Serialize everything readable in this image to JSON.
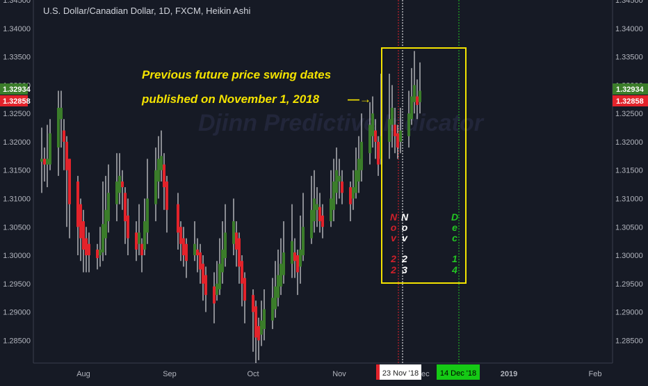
{
  "header": {
    "symbol_title": "U.S. Dollar/Canadian Dollar, 1D, FXCM, Heikin Ashi",
    "watermark": "Djinn Predictive Indicator"
  },
  "price_badges": {
    "upper": "1.32934",
    "lower": "1.32858",
    "upper_color": "#3b7d2a",
    "lower_color": "#e3232b"
  },
  "annotation": {
    "line1": "Previous future price swing dates",
    "line2": "published on November 1, 2018",
    "arrow": "—→",
    "color": "#f4e300"
  },
  "vertical_labels": [
    {
      "chars": [
        "N",
        "o",
        "v"
      ],
      "digits": [
        "2",
        "2"
      ],
      "color": "#d0202a"
    },
    {
      "chars": [
        "N",
        "o",
        "v"
      ],
      "digits": [
        "2",
        "3"
      ],
      "color": "#ffffff"
    },
    {
      "chars": [
        "D",
        "e",
        "c"
      ],
      "digits": [
        "1",
        "4"
      ],
      "color": "#22c522"
    }
  ],
  "date_badges": [
    {
      "label": "23 Nov '18",
      "bg": "#ffffff",
      "fg": "#222222",
      "accent": "#e3232b"
    },
    {
      "label": "14 Dec '18",
      "bg": "#15c915",
      "fg": "#000000"
    }
  ],
  "chart_data": {
    "type": "candlestick",
    "style": "Heikin Ashi",
    "title": "U.S. Dollar/Canadian Dollar, 1D, FXCM, Heikin Ashi",
    "ylim": [
      1.281,
      1.345
    ],
    "y_ticks": [
      "1.28500",
      "1.29000",
      "1.29500",
      "1.30000",
      "1.30500",
      "1.31000",
      "1.31500",
      "1.32000",
      "1.32500",
      "1.33000",
      "1.33500",
      "1.34000",
      "1.34500"
    ],
    "x_ticks": [
      "Aug",
      "Sep",
      "Oct",
      "Nov",
      "Dec",
      "2019",
      "Feb"
    ],
    "grid": false,
    "up_color": "#3b7d2a",
    "down_color": "#e3232b",
    "wick_color": "#ffffff",
    "x_start": "2018-07-17",
    "series": [
      {
        "date": "2018-07-17",
        "open": 1.3165,
        "close": 1.317,
        "high": 1.3225,
        "low": 1.311
      },
      {
        "date": "2018-07-18",
        "open": 1.317,
        "close": 1.316,
        "high": 1.319,
        "low": 1.313
      },
      {
        "date": "2018-07-19",
        "open": 1.316,
        "close": 1.317,
        "high": 1.323,
        "low": 1.312
      },
      {
        "date": "2018-07-20",
        "open": 1.316,
        "close": 1.3215,
        "high": 1.324,
        "low": 1.315
      },
      {
        "date": "2018-07-23",
        "open": 1.319,
        "close": 1.326,
        "high": 1.329,
        "low": 1.314
      },
      {
        "date": "2018-07-24",
        "open": 1.324,
        "close": 1.326,
        "high": 1.329,
        "low": 1.319
      },
      {
        "date": "2018-07-25",
        "open": 1.322,
        "close": 1.32,
        "high": 1.324,
        "low": 1.315
      },
      {
        "date": "2018-07-26",
        "open": 1.32,
        "close": 1.315,
        "high": 1.321,
        "low": 1.305
      },
      {
        "date": "2018-07-27",
        "open": 1.317,
        "close": 1.309,
        "high": 1.317,
        "low": 1.303
      },
      {
        "date": "2018-07-30",
        "open": 1.313,
        "close": 1.305,
        "high": 1.314,
        "low": 1.3
      },
      {
        "date": "2018-07-31",
        "open": 1.309,
        "close": 1.303,
        "high": 1.31,
        "low": 1.299
      },
      {
        "date": "2018-08-01",
        "open": 1.306,
        "close": 1.301,
        "high": 1.308,
        "low": 1.297
      },
      {
        "date": "2018-08-02",
        "open": 1.303,
        "close": 1.3,
        "high": 1.305,
        "low": 1.297
      },
      {
        "date": "2018-08-03",
        "open": 1.302,
        "close": 1.3,
        "high": 1.304,
        "low": 1.297
      },
      {
        "date": "2018-08-06",
        "open": 1.301,
        "close": 1.2995,
        "high": 1.302,
        "low": 1.2975
      },
      {
        "date": "2018-08-07",
        "open": 1.3,
        "close": 1.301,
        "high": 1.305,
        "low": 1.298
      },
      {
        "date": "2018-08-08",
        "open": 1.3005,
        "close": 1.3055,
        "high": 1.313,
        "low": 1.299
      },
      {
        "date": "2018-08-09",
        "open": 1.303,
        "close": 1.308,
        "high": 1.314,
        "low": 1.3
      },
      {
        "date": "2018-08-10",
        "open": 1.306,
        "close": 1.311,
        "high": 1.316,
        "low": 1.304
      },
      {
        "date": "2018-08-13",
        "open": 1.309,
        "close": 1.313,
        "high": 1.318,
        "low": 1.306
      },
      {
        "date": "2018-08-14",
        "open": 1.311,
        "close": 1.314,
        "high": 1.318,
        "low": 1.309
      },
      {
        "date": "2018-08-15",
        "open": 1.313,
        "close": 1.312,
        "high": 1.315,
        "low": 1.308
      },
      {
        "date": "2018-08-16",
        "open": 1.311,
        "close": 1.306,
        "high": 1.312,
        "low": 1.302
      },
      {
        "date": "2018-08-17",
        "open": 1.307,
        "close": 1.303,
        "high": 1.31,
        "low": 1.3
      },
      {
        "date": "2018-08-20",
        "open": 1.304,
        "close": 1.301,
        "high": 1.306,
        "low": 1.299
      },
      {
        "date": "2018-08-21",
        "open": 1.302,
        "close": 1.304,
        "high": 1.309,
        "low": 1.3
      },
      {
        "date": "2018-08-22",
        "open": 1.302,
        "close": 1.3,
        "high": 1.303,
        "low": 1.297
      },
      {
        "date": "2018-08-23",
        "open": 1.301,
        "close": 1.306,
        "high": 1.31,
        "low": 1.3
      },
      {
        "date": "2018-08-24",
        "open": 1.304,
        "close": 1.31,
        "high": 1.317,
        "low": 1.302
      },
      {
        "date": "2018-08-27",
        "open": 1.309,
        "close": 1.315,
        "high": 1.319,
        "low": 1.306
      },
      {
        "date": "2018-08-28",
        "open": 1.313,
        "close": 1.317,
        "high": 1.321,
        "low": 1.31
      },
      {
        "date": "2018-08-29",
        "open": 1.315,
        "close": 1.3175,
        "high": 1.322,
        "low": 1.313
      },
      {
        "date": "2018-08-30",
        "open": 1.316,
        "close": 1.312,
        "high": 1.318,
        "low": 1.308
      },
      {
        "date": "2018-08-31",
        "open": 1.313,
        "close": 1.308,
        "high": 1.314,
        "low": 1.304
      },
      {
        "date": "2018-09-04",
        "open": 1.309,
        "close": 1.304,
        "high": 1.311,
        "low": 1.301
      },
      {
        "date": "2018-09-05",
        "open": 1.305,
        "close": 1.302,
        "high": 1.306,
        "low": 1.299
      },
      {
        "date": "2018-09-06",
        "open": 1.303,
        "close": 1.3,
        "high": 1.305,
        "low": 1.298
      },
      {
        "date": "2018-09-07",
        "open": 1.302,
        "close": 1.299,
        "high": 1.303,
        "low": 1.296
      },
      {
        "date": "2018-09-10",
        "open": 1.3,
        "close": 1.302,
        "high": 1.306,
        "low": 1.299
      },
      {
        "date": "2018-09-11",
        "open": 1.301,
        "close": 1.3,
        "high": 1.303,
        "low": 1.297
      },
      {
        "date": "2018-09-12",
        "open": 1.3005,
        "close": 1.2975,
        "high": 1.302,
        "low": 1.295
      },
      {
        "date": "2018-09-13",
        "open": 1.2985,
        "close": 1.295,
        "high": 1.3,
        "low": 1.292
      },
      {
        "date": "2018-09-14",
        "open": 1.2965,
        "close": 1.293,
        "high": 1.298,
        "low": 1.29
      },
      {
        "date": "2018-09-17",
        "open": 1.2945,
        "close": 1.2915,
        "high": 1.297,
        "low": 1.288
      },
      {
        "date": "2018-09-18",
        "open": 1.293,
        "close": 1.295,
        "high": 1.299,
        "low": 1.292
      },
      {
        "date": "2018-09-19",
        "open": 1.294,
        "close": 1.2985,
        "high": 1.303,
        "low": 1.293
      },
      {
        "date": "2018-09-20",
        "open": 1.297,
        "close": 1.301,
        "high": 1.306,
        "low": 1.295
      },
      {
        "date": "2018-09-21",
        "open": 1.2995,
        "close": 1.304,
        "high": 1.309,
        "low": 1.298
      },
      {
        "date": "2018-09-24",
        "open": 1.302,
        "close": 1.306,
        "high": 1.31,
        "low": 1.3
      },
      {
        "date": "2018-09-25",
        "open": 1.304,
        "close": 1.301,
        "high": 1.306,
        "low": 1.298
      },
      {
        "date": "2018-09-26",
        "open": 1.303,
        "close": 1.298,
        "high": 1.304,
        "low": 1.295
      },
      {
        "date": "2018-09-27",
        "open": 1.299,
        "close": 1.295,
        "high": 1.3,
        "low": 1.291
      },
      {
        "date": "2018-09-28",
        "open": 1.296,
        "close": 1.292,
        "high": 1.297,
        "low": 1.288
      },
      {
        "date": "2018-10-01",
        "open": 1.293,
        "close": 1.29,
        "high": 1.294,
        "low": 1.283
      },
      {
        "date": "2018-10-02",
        "open": 1.291,
        "close": 1.2855,
        "high": 1.292,
        "low": 1.281
      },
      {
        "date": "2018-10-03",
        "open": 1.2875,
        "close": 1.285,
        "high": 1.289,
        "low": 1.2815
      },
      {
        "date": "2018-10-04",
        "open": 1.286,
        "close": 1.2885,
        "high": 1.292,
        "low": 1.284
      },
      {
        "date": "2018-10-05",
        "open": 1.287,
        "close": 1.2905,
        "high": 1.294,
        "low": 1.285
      },
      {
        "date": "2018-10-08",
        "open": 1.2885,
        "close": 1.2925,
        "high": 1.296,
        "low": 1.287
      },
      {
        "date": "2018-10-09",
        "open": 1.2905,
        "close": 1.2945,
        "high": 1.299,
        "low": 1.289
      },
      {
        "date": "2018-10-10",
        "open": 1.2925,
        "close": 1.2965,
        "high": 1.301,
        "low": 1.291
      },
      {
        "date": "2018-10-11",
        "open": 1.2945,
        "close": 1.2985,
        "high": 1.303,
        "low": 1.293
      },
      {
        "date": "2018-10-12",
        "open": 1.2965,
        "close": 1.3005,
        "high": 1.306,
        "low": 1.295
      },
      {
        "date": "2018-10-15",
        "open": 1.2985,
        "close": 1.3025,
        "high": 1.309,
        "low": 1.296
      },
      {
        "date": "2018-10-16",
        "open": 1.3005,
        "close": 1.299,
        "high": 1.303,
        "low": 1.296
      },
      {
        "date": "2018-10-17",
        "open": 1.3,
        "close": 1.297,
        "high": 1.301,
        "low": 1.293
      },
      {
        "date": "2018-10-18",
        "open": 1.298,
        "close": 1.301,
        "high": 1.307,
        "low": 1.295
      },
      {
        "date": "2018-10-19",
        "open": 1.3,
        "close": 1.305,
        "high": 1.311,
        "low": 1.299
      },
      {
        "date": "2018-10-22",
        "open": 1.303,
        "close": 1.308,
        "high": 1.314,
        "low": 1.302
      },
      {
        "date": "2018-10-23",
        "open": 1.306,
        "close": 1.31,
        "high": 1.315,
        "low": 1.304
      },
      {
        "date": "2018-10-24",
        "open": 1.308,
        "close": 1.309,
        "high": 1.312,
        "low": 1.305
      },
      {
        "date": "2018-10-25",
        "open": 1.3085,
        "close": 1.306,
        "high": 1.311,
        "low": 1.304
      },
      {
        "date": "2018-10-26",
        "open": 1.307,
        "close": 1.305,
        "high": 1.309,
        "low": 1.303
      },
      {
        "date": "2018-10-29",
        "open": 1.306,
        "close": 1.31,
        "high": 1.315,
        "low": 1.305
      },
      {
        "date": "2018-10-30",
        "open": 1.308,
        "close": 1.313,
        "high": 1.317,
        "low": 1.306
      },
      {
        "date": "2018-10-31",
        "open": 1.311,
        "close": 1.315,
        "high": 1.319,
        "low": 1.309
      },
      {
        "date": "2018-11-01",
        "open": 1.313,
        "close": 1.314,
        "high": 1.317,
        "low": 1.31
      },
      {
        "date": "2018-11-02",
        "open": 1.313,
        "close": 1.311,
        "high": 1.315,
        "low": 1.309
      },
      {
        "date": "2018-11-05",
        "open": 1.312,
        "close": 1.309,
        "high": 1.313,
        "low": 1.306
      },
      {
        "date": "2018-11-06",
        "open": 1.31,
        "close": 1.312,
        "high": 1.315,
        "low": 1.308
      },
      {
        "date": "2018-11-07",
        "open": 1.311,
        "close": 1.315,
        "high": 1.319,
        "low": 1.31
      },
      {
        "date": "2018-11-08",
        "open": 1.313,
        "close": 1.317,
        "high": 1.321,
        "low": 1.311
      },
      {
        "date": "2018-11-09",
        "open": 1.315,
        "close": 1.32,
        "high": 1.325,
        "low": 1.313
      },
      {
        "date": "2018-11-12",
        "open": 1.318,
        "close": 1.323,
        "high": 1.327,
        "low": 1.316
      },
      {
        "date": "2018-11-13",
        "open": 1.321,
        "close": 1.325,
        "high": 1.328,
        "low": 1.319
      },
      {
        "date": "2018-11-14",
        "open": 1.322,
        "close": 1.32,
        "high": 1.324,
        "low": 1.317
      },
      {
        "date": "2018-11-15",
        "open": 1.32,
        "close": 1.316,
        "high": 1.321,
        "low": 1.314
      },
      {
        "date": "2018-11-16",
        "open": 1.317,
        "close": 1.321,
        "high": 1.332,
        "low": 1.316
      },
      {
        "date": "2018-11-19",
        "open": 1.32,
        "close": 1.324,
        "high": 1.332,
        "low": 1.317
      },
      {
        "date": "2018-11-20",
        "open": 1.323,
        "close": 1.326,
        "high": 1.33,
        "low": 1.319
      },
      {
        "date": "2018-11-21",
        "open": 1.323,
        "close": 1.321,
        "high": 1.326,
        "low": 1.318
      },
      {
        "date": "2018-11-22",
        "open": 1.3215,
        "close": 1.319,
        "high": 1.323,
        "low": 1.317
      },
      {
        "date": "2018-11-23",
        "open": 1.32,
        "close": 1.322,
        "high": 1.326,
        "low": 1.318
      },
      {
        "date": "2018-11-26",
        "open": 1.321,
        "close": 1.325,
        "high": 1.329,
        "low": 1.319
      },
      {
        "date": "2018-11-27",
        "open": 1.324,
        "close": 1.328,
        "high": 1.333,
        "low": 1.323
      },
      {
        "date": "2018-11-28",
        "open": 1.327,
        "close": 1.33,
        "high": 1.336,
        "low": 1.325
      },
      {
        "date": "2018-11-29",
        "open": 1.328,
        "close": 1.3265,
        "high": 1.331,
        "low": 1.324
      },
      {
        "date": "2018-11-30",
        "open": 1.327,
        "close": 1.329,
        "high": 1.334,
        "low": 1.325
      }
    ]
  }
}
